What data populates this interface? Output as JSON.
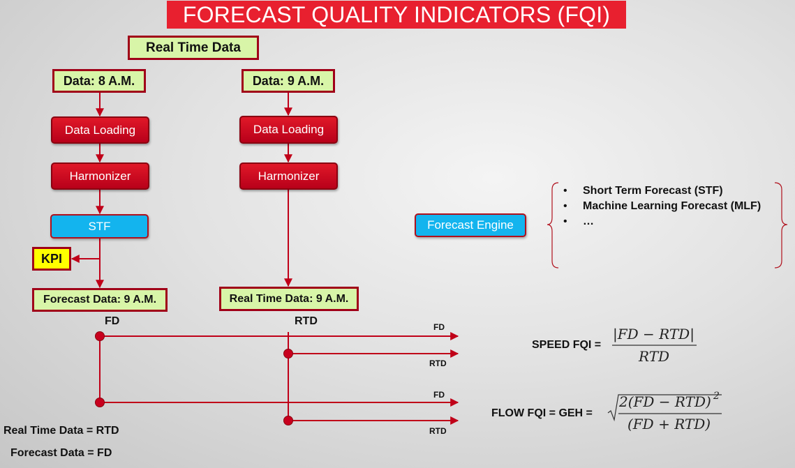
{
  "title": "FORECAST QUALITY INDICATORS (FQI)",
  "real_time_data": "Real Time Data",
  "left_branch": {
    "data": "Data: 8 A.M.",
    "loading": "Data Loading",
    "harmonizer": "Harmonizer",
    "stf": "STF",
    "kpi": "KPI",
    "output": "Forecast Data: 9 A.M.",
    "tag": "FD"
  },
  "right_branch": {
    "data": "Data: 9 A.M.",
    "loading": "Data Loading",
    "harmonizer": "Harmonizer",
    "output": "Real Time Data: 9 A.M.",
    "tag": "RTD"
  },
  "forecast_engine": {
    "label": "Forecast Engine",
    "items": [
      "Short Term Forecast (STF)",
      "Machine Learning Forecast (MLF)",
      "…"
    ]
  },
  "arrow_labels": {
    "fd1": "FD",
    "rtd1": "RTD",
    "fd2": "FD",
    "rtd2": "RTD"
  },
  "formulas": {
    "speed_label": "SPEED FQI =",
    "speed_numerator": "|FD − RTD|",
    "speed_denominator": "RTD",
    "flow_label": "FLOW FQI = GEH =",
    "flow_numerator": "2(FD − RTD)",
    "flow_exponent": "2",
    "flow_denominator": "(FD + RTD)"
  },
  "legend": {
    "rtd": "Real Time Data = RTD",
    "fd": "Forecast Data = FD"
  },
  "colors": {
    "title_bg": "#e8202f",
    "box_green": "#d8f5a8",
    "box_red": "#c8001e",
    "box_blue": "#13b4ee",
    "kpi_yellow": "#ffff00",
    "line_red": "#c00018"
  }
}
